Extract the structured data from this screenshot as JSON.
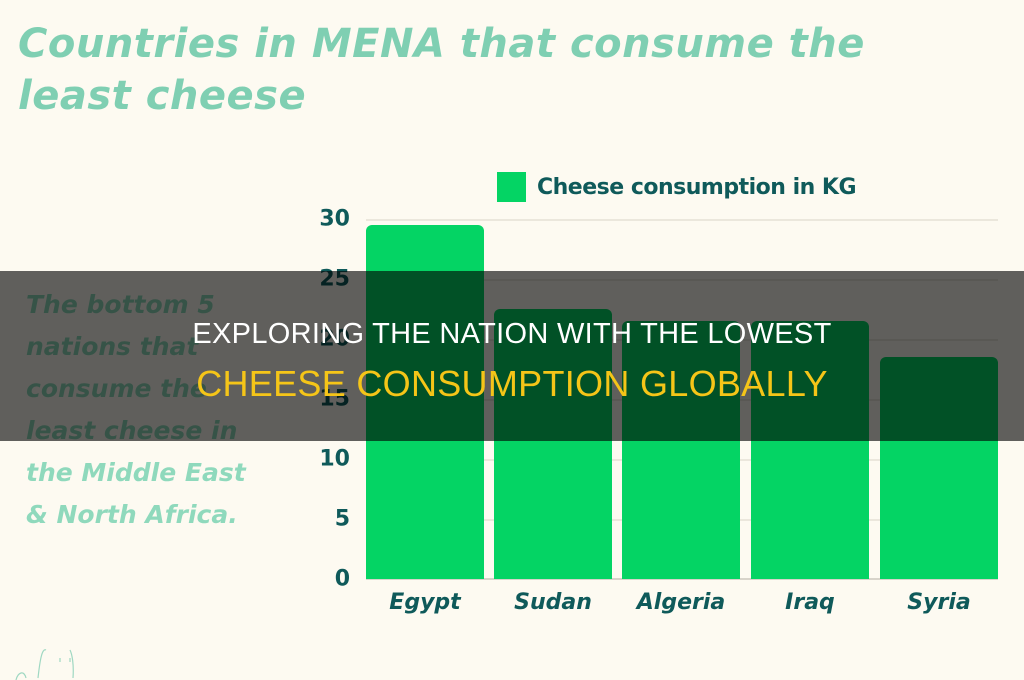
{
  "chart_data": {
    "type": "bar",
    "title": "Countries in MENA that consume the least cheese",
    "subtitle": "The bottom 5 nations that consume the least cheese in the Middle East & North Africa.",
    "categories": [
      "Egypt",
      "Sudan",
      "Algeria",
      "Iraq",
      "Syria"
    ],
    "series": [
      {
        "name": "Cheese consumption in KG",
        "values": [
          29.5,
          22.5,
          21.5,
          21.5,
          18.5
        ],
        "color": "#04d464"
      }
    ],
    "xlabel": "",
    "ylabel": "",
    "ylim": [
      0,
      30
    ],
    "yticks": [
      0,
      5,
      10,
      15,
      20,
      25,
      30
    ],
    "grid": true,
    "legend_position": "top"
  },
  "page": {
    "title": "Countries in MENA that consume the least cheese",
    "subtitle": "The bottom 5 nations that consume the least cheese in the Middle East & North Africa.",
    "legend_label": "Cheese consumption in KG",
    "yticks": [
      "30",
      "25",
      "20",
      "15",
      "10",
      "5",
      "0"
    ],
    "categories": [
      "Egypt",
      "Sudan",
      "Algeria",
      "Iraq",
      "Syria"
    ]
  },
  "overlay": {
    "line1": "EXPLORING THE NATION WITH THE LOWEST",
    "line2": "CHEESE CONSUMPTION GLOBALLY"
  },
  "colors": {
    "background": "#fdfaf1",
    "title": "#7fcfb2",
    "bar": "#04d464",
    "axis_text": "#0f5a5a",
    "overlay_headline": "#ffffff",
    "overlay_accent": "#f5c518"
  }
}
